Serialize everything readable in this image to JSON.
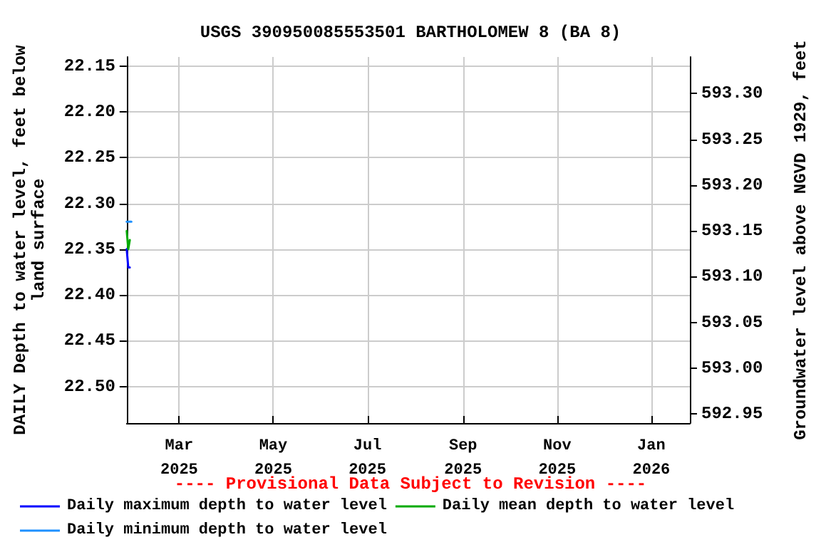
{
  "chart_data": {
    "type": "line",
    "title": "USGS 390950085553501 BARTHOLOMEW 8 (BA 8)",
    "ylabel": "DAILY Depth to water level, feet below land surface",
    "y2label": "Groundwater level above NGVD 1929, feet",
    "annotations": [
      "---- Provisional Data Subject to Revision ----"
    ],
    "series": [
      {
        "name": "Daily maximum depth to water level",
        "color": "#0000ff",
        "x": [
          "2025-01-26",
          "2025-01-27",
          "2025-01-28"
        ],
        "values": [
          22.35,
          22.37,
          22.37
        ]
      },
      {
        "name": "Daily mean depth to water level",
        "color": "#00aa00",
        "x": [
          "2025-01-26",
          "2025-01-27",
          "2025-01-28"
        ],
        "values": [
          22.33,
          22.35,
          22.34
        ]
      },
      {
        "name": "Daily minimum depth to water level",
        "color": "#1e90ff",
        "x": [
          "2025-01-26",
          "2025-01-29"
        ],
        "values": [
          22.32,
          22.32
        ]
      }
    ],
    "xlim": [
      "2025-01-26",
      "2026-01-26"
    ],
    "xticks": [
      {
        "value": "2025-03-01",
        "label": "Mar\n2025"
      },
      {
        "value": "2025-05-01",
        "label": "May\n2025"
      },
      {
        "value": "2025-07-01",
        "label": "Jul\n2025"
      },
      {
        "value": "2025-09-01",
        "label": "Sep\n2025"
      },
      {
        "value": "2025-11-01",
        "label": "Nov\n2025"
      },
      {
        "value": "2026-01-01",
        "label": "Jan\n2026"
      }
    ],
    "ylim": [
      22.54,
      22.14
    ],
    "yticks": [
      {
        "value": 22.15,
        "label": "22.15"
      },
      {
        "value": 22.2,
        "label": "22.20"
      },
      {
        "value": 22.25,
        "label": "22.25"
      },
      {
        "value": 22.3,
        "label": "22.30"
      },
      {
        "value": 22.35,
        "label": "22.35"
      },
      {
        "value": 22.4,
        "label": "22.40"
      },
      {
        "value": 22.45,
        "label": "22.45"
      },
      {
        "value": 22.5,
        "label": "22.50"
      }
    ],
    "y2lim": [
      592.94,
      593.34
    ],
    "y2ticks": [
      {
        "value": 592.95,
        "label": "592.95"
      },
      {
        "value": 593,
        "label": "593.00"
      },
      {
        "value": 593.05,
        "label": "593.05"
      },
      {
        "value": 593.1,
        "label": "593.10"
      },
      {
        "value": 593.15,
        "label": "593.15"
      },
      {
        "value": 593.2,
        "label": "593.20"
      },
      {
        "value": 593.25,
        "label": "593.25"
      },
      {
        "value": 593.3,
        "label": "593.30"
      }
    ],
    "grid": true,
    "legend": "bottom",
    "line_style": "solid",
    "marker": "none"
  }
}
